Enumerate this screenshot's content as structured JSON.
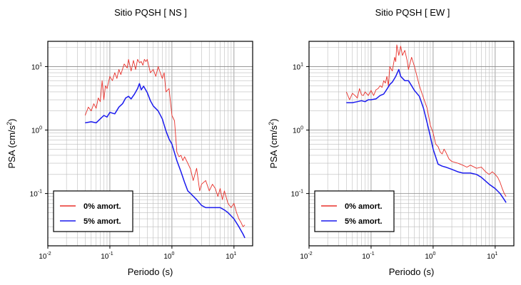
{
  "chart_data": [
    {
      "type": "line",
      "title": "Sitio PQSH [ NS ]",
      "xlabel": "Periodo (s)",
      "ylabel": "PSA (cm/s²)",
      "xscale": "log",
      "yscale": "log",
      "xlim": [
        0.01,
        20
      ],
      "ylim": [
        0.015,
        25
      ],
      "grid": true,
      "legend_position": "bottom-left",
      "x_ticks": [
        {
          "base": "10",
          "exp": "-2",
          "value": 0.01
        },
        {
          "base": "10",
          "exp": "-1",
          "value": 0.1
        },
        {
          "base": "10",
          "exp": "0",
          "value": 1
        },
        {
          "base": "10",
          "exp": "1",
          "value": 10
        }
      ],
      "y_ticks": [
        {
          "base": "10",
          "exp": "-1",
          "value": 0.1
        },
        {
          "base": "10",
          "exp": "0",
          "value": 1
        },
        {
          "base": "10",
          "exp": "1",
          "value": 10
        }
      ],
      "series": [
        {
          "name": "0% amort.",
          "color": "#e8302a",
          "x": [
            0.04,
            0.045,
            0.05,
            0.055,
            0.06,
            0.065,
            0.07,
            0.075,
            0.08,
            0.085,
            0.09,
            0.1,
            0.11,
            0.12,
            0.13,
            0.14,
            0.15,
            0.17,
            0.19,
            0.2,
            0.22,
            0.24,
            0.26,
            0.28,
            0.3,
            0.32,
            0.34,
            0.36,
            0.38,
            0.4,
            0.45,
            0.5,
            0.55,
            0.6,
            0.65,
            0.7,
            0.75,
            0.8,
            0.9,
            1.0,
            1.1,
            1.2,
            1.3,
            1.4,
            1.5,
            1.6,
            1.8,
            2.0,
            2.2,
            2.5,
            2.8,
            3.0,
            3.5,
            4.0,
            4.5,
            5.0,
            5.5,
            6.0,
            6.5,
            7.0,
            8.0,
            9.0,
            10.0,
            11.0,
            12.0,
            13.0,
            14.0,
            15.0
          ],
          "y": [
            1.7,
            2.3,
            2.0,
            2.6,
            2.2,
            3.2,
            2.8,
            6.0,
            3.0,
            5.0,
            4.5,
            7.0,
            6.0,
            8.0,
            6.5,
            9.0,
            7.5,
            11.0,
            9.5,
            13.0,
            8.5,
            12.5,
            9.0,
            13.0,
            11.5,
            12.0,
            10.5,
            13.0,
            12.0,
            13.0,
            8.0,
            9.0,
            7.0,
            10.0,
            8.0,
            6.5,
            8.0,
            4.0,
            4.5,
            1.7,
            1.4,
            0.45,
            0.38,
            0.4,
            0.33,
            0.38,
            0.3,
            0.24,
            0.16,
            0.25,
            0.11,
            0.14,
            0.16,
            0.11,
            0.14,
            0.12,
            0.09,
            0.12,
            0.08,
            0.11,
            0.07,
            0.06,
            0.07,
            0.05,
            0.04,
            0.035,
            0.03,
            0.032
          ]
        },
        {
          "name": "5% amort.",
          "color": "#1a1aee",
          "x": [
            0.04,
            0.05,
            0.06,
            0.07,
            0.08,
            0.09,
            0.1,
            0.12,
            0.14,
            0.16,
            0.18,
            0.2,
            0.22,
            0.25,
            0.28,
            0.3,
            0.32,
            0.35,
            0.4,
            0.45,
            0.5,
            0.6,
            0.7,
            0.8,
            0.9,
            1.0,
            1.2,
            1.4,
            1.6,
            1.8,
            2.0,
            2.5,
            3.0,
            3.5,
            4.0,
            5.0,
            6.0,
            7.0,
            8.0,
            10.0,
            12.0,
            14.0,
            15.0
          ],
          "y": [
            1.3,
            1.35,
            1.3,
            1.5,
            1.7,
            1.6,
            1.9,
            1.8,
            2.3,
            2.6,
            3.2,
            3.4,
            3.1,
            3.7,
            4.5,
            5.4,
            4.3,
            4.9,
            3.9,
            2.9,
            2.4,
            2.0,
            1.5,
            0.97,
            0.72,
            0.6,
            0.33,
            0.22,
            0.15,
            0.11,
            0.1,
            0.08,
            0.065,
            0.06,
            0.06,
            0.06,
            0.06,
            0.055,
            0.05,
            0.04,
            0.03,
            0.023,
            0.02
          ]
        }
      ]
    },
    {
      "type": "line",
      "title": "Sitio PQSH [ EW ]",
      "xlabel": "Periodo (s)",
      "ylabel": "PSA (cm/s²)",
      "xscale": "log",
      "yscale": "log",
      "xlim": [
        0.01,
        20
      ],
      "ylim": [
        0.015,
        25
      ],
      "grid": true,
      "legend_position": "bottom-left",
      "x_ticks": [
        {
          "base": "10",
          "exp": "-2",
          "value": 0.01
        },
        {
          "base": "10",
          "exp": "-1",
          "value": 0.1
        },
        {
          "base": "10",
          "exp": "0",
          "value": 1
        },
        {
          "base": "10",
          "exp": "1",
          "value": 10
        }
      ],
      "y_ticks": [
        {
          "base": "10",
          "exp": "-1",
          "value": 0.1
        },
        {
          "base": "10",
          "exp": "0",
          "value": 1
        },
        {
          "base": "10",
          "exp": "1",
          "value": 10
        }
      ],
      "series": [
        {
          "name": "0% amort.",
          "color": "#e8302a",
          "x": [
            0.04,
            0.045,
            0.05,
            0.055,
            0.06,
            0.065,
            0.07,
            0.075,
            0.08,
            0.09,
            0.1,
            0.11,
            0.12,
            0.13,
            0.14,
            0.15,
            0.16,
            0.17,
            0.18,
            0.19,
            0.2,
            0.22,
            0.24,
            0.25,
            0.26,
            0.28,
            0.3,
            0.32,
            0.35,
            0.38,
            0.4,
            0.45,
            0.5,
            0.55,
            0.6,
            0.7,
            0.8,
            0.9,
            1.0,
            1.1,
            1.2,
            1.3,
            1.4,
            1.5,
            1.6,
            1.8,
            2.0,
            2.5,
            3.0,
            3.5,
            4.0,
            5.0,
            6.0,
            7.0,
            8.0,
            9.0,
            10.0,
            11.0,
            12.0,
            13.0,
            14.0,
            15.0
          ],
          "y": [
            4.0,
            3.0,
            3.8,
            3.5,
            3.2,
            4.5,
            3.6,
            3.5,
            4.0,
            3.5,
            4.2,
            3.5,
            4.3,
            4.5,
            5.0,
            4.7,
            6.0,
            5.5,
            7.0,
            5.0,
            10.0,
            8.5,
            14.0,
            12.0,
            22.0,
            15.0,
            21.0,
            15.0,
            18.0,
            12.5,
            9.0,
            14.0,
            10.0,
            7.0,
            5.0,
            3.2,
            2.2,
            1.2,
            0.9,
            0.6,
            0.55,
            0.45,
            0.42,
            0.5,
            0.45,
            0.35,
            0.32,
            0.3,
            0.28,
            0.26,
            0.28,
            0.25,
            0.26,
            0.22,
            0.2,
            0.22,
            0.2,
            0.18,
            0.15,
            0.12,
            0.1,
            0.09
          ]
        },
        {
          "name": "5% amort.",
          "color": "#1a1aee",
          "x": [
            0.04,
            0.05,
            0.06,
            0.07,
            0.08,
            0.09,
            0.1,
            0.12,
            0.14,
            0.16,
            0.18,
            0.2,
            0.22,
            0.25,
            0.28,
            0.3,
            0.35,
            0.4,
            0.45,
            0.5,
            0.6,
            0.7,
            0.8,
            0.9,
            1.0,
            1.2,
            1.4,
            1.6,
            2.0,
            2.5,
            3.0,
            4.0,
            5.0,
            6.0,
            8.0,
            10.0,
            12.0,
            14.0,
            15.0
          ],
          "y": [
            2.7,
            2.7,
            2.8,
            2.9,
            2.8,
            3.0,
            3.0,
            3.1,
            3.5,
            3.7,
            4.4,
            5.2,
            5.7,
            7.0,
            9.0,
            7.0,
            6.0,
            6.0,
            5.0,
            4.2,
            3.4,
            2.2,
            1.3,
            0.8,
            0.5,
            0.29,
            0.27,
            0.26,
            0.24,
            0.22,
            0.21,
            0.21,
            0.2,
            0.18,
            0.14,
            0.12,
            0.1,
            0.08,
            0.072
          ]
        }
      ]
    }
  ]
}
